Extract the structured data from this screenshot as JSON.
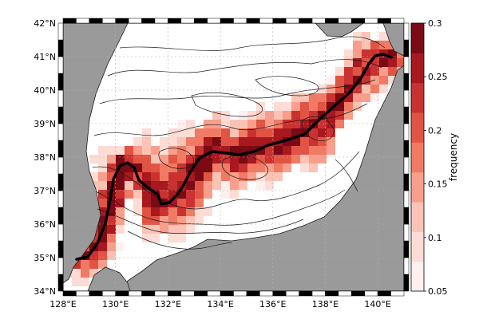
{
  "map": {
    "lat_labels": [
      "42°N",
      "41°N",
      "40°N",
      "39°N",
      "38°N",
      "37°N",
      "36°N",
      "35°N",
      "34°N"
    ],
    "lon_labels": [
      "128°E",
      "130°E",
      "132°E",
      "134°E",
      "136°E",
      "138°E",
      "140°E"
    ],
    "lat_range": [
      34,
      42
    ],
    "lon_range": [
      128,
      141
    ],
    "colors": {
      "land": "#9a9a9a",
      "sea": "#ffffff",
      "contour": "#1a1a1a",
      "path": "#000000",
      "grid": "#b0b0b0"
    }
  },
  "colorbar": {
    "title": "frequency",
    "tick_labels": [
      "0.3",
      "0.25",
      "0.2",
      "0.15",
      "0.1",
      "0.05"
    ],
    "range": [
      0.05,
      0.3
    ],
    "colors": [
      "#fdf0ee",
      "#fcdcd5",
      "#fbc3b5",
      "#f89e8a",
      "#f07a63",
      "#e15444",
      "#c93230",
      "#a8181f",
      "#7a0a14"
    ]
  }
}
